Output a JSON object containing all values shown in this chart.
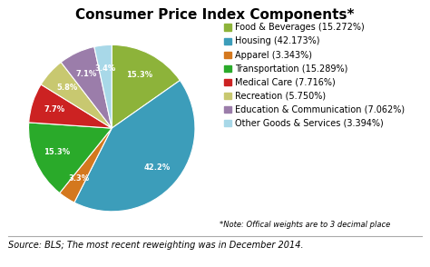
{
  "title": "Consumer Price Index Components*",
  "labels": [
    "Food & Beverages (15.272%)",
    "Housing (42.173%)",
    "Apparel (3.343%)",
    "Transportation (15.289%)",
    "Medical Care (7.716%)",
    "Recreation (5.750%)",
    "Education & Communication (7.062%)",
    "Other Goods & Services (3.394%)"
  ],
  "values": [
    15.272,
    42.173,
    3.343,
    15.289,
    7.716,
    5.75,
    7.062,
    3.394
  ],
  "colors": [
    "#8db33a",
    "#3c9dba",
    "#d4781e",
    "#2aaa2a",
    "#cc2222",
    "#c8c870",
    "#9b7daa",
    "#a8d8e8"
  ],
  "autopct_labels": [
    "15.3%",
    "42.2%",
    "3.3%",
    "15.3%",
    "7.7%",
    "5.8%",
    "7.1%",
    "3.4%"
  ],
  "source_text": "Source: BLS; The most recent reweighting was in December 2014.",
  "note_text": "*Note: Offical weights are to 3 decimal place",
  "title_fontsize": 11,
  "legend_fontsize": 7,
  "source_fontsize": 7
}
